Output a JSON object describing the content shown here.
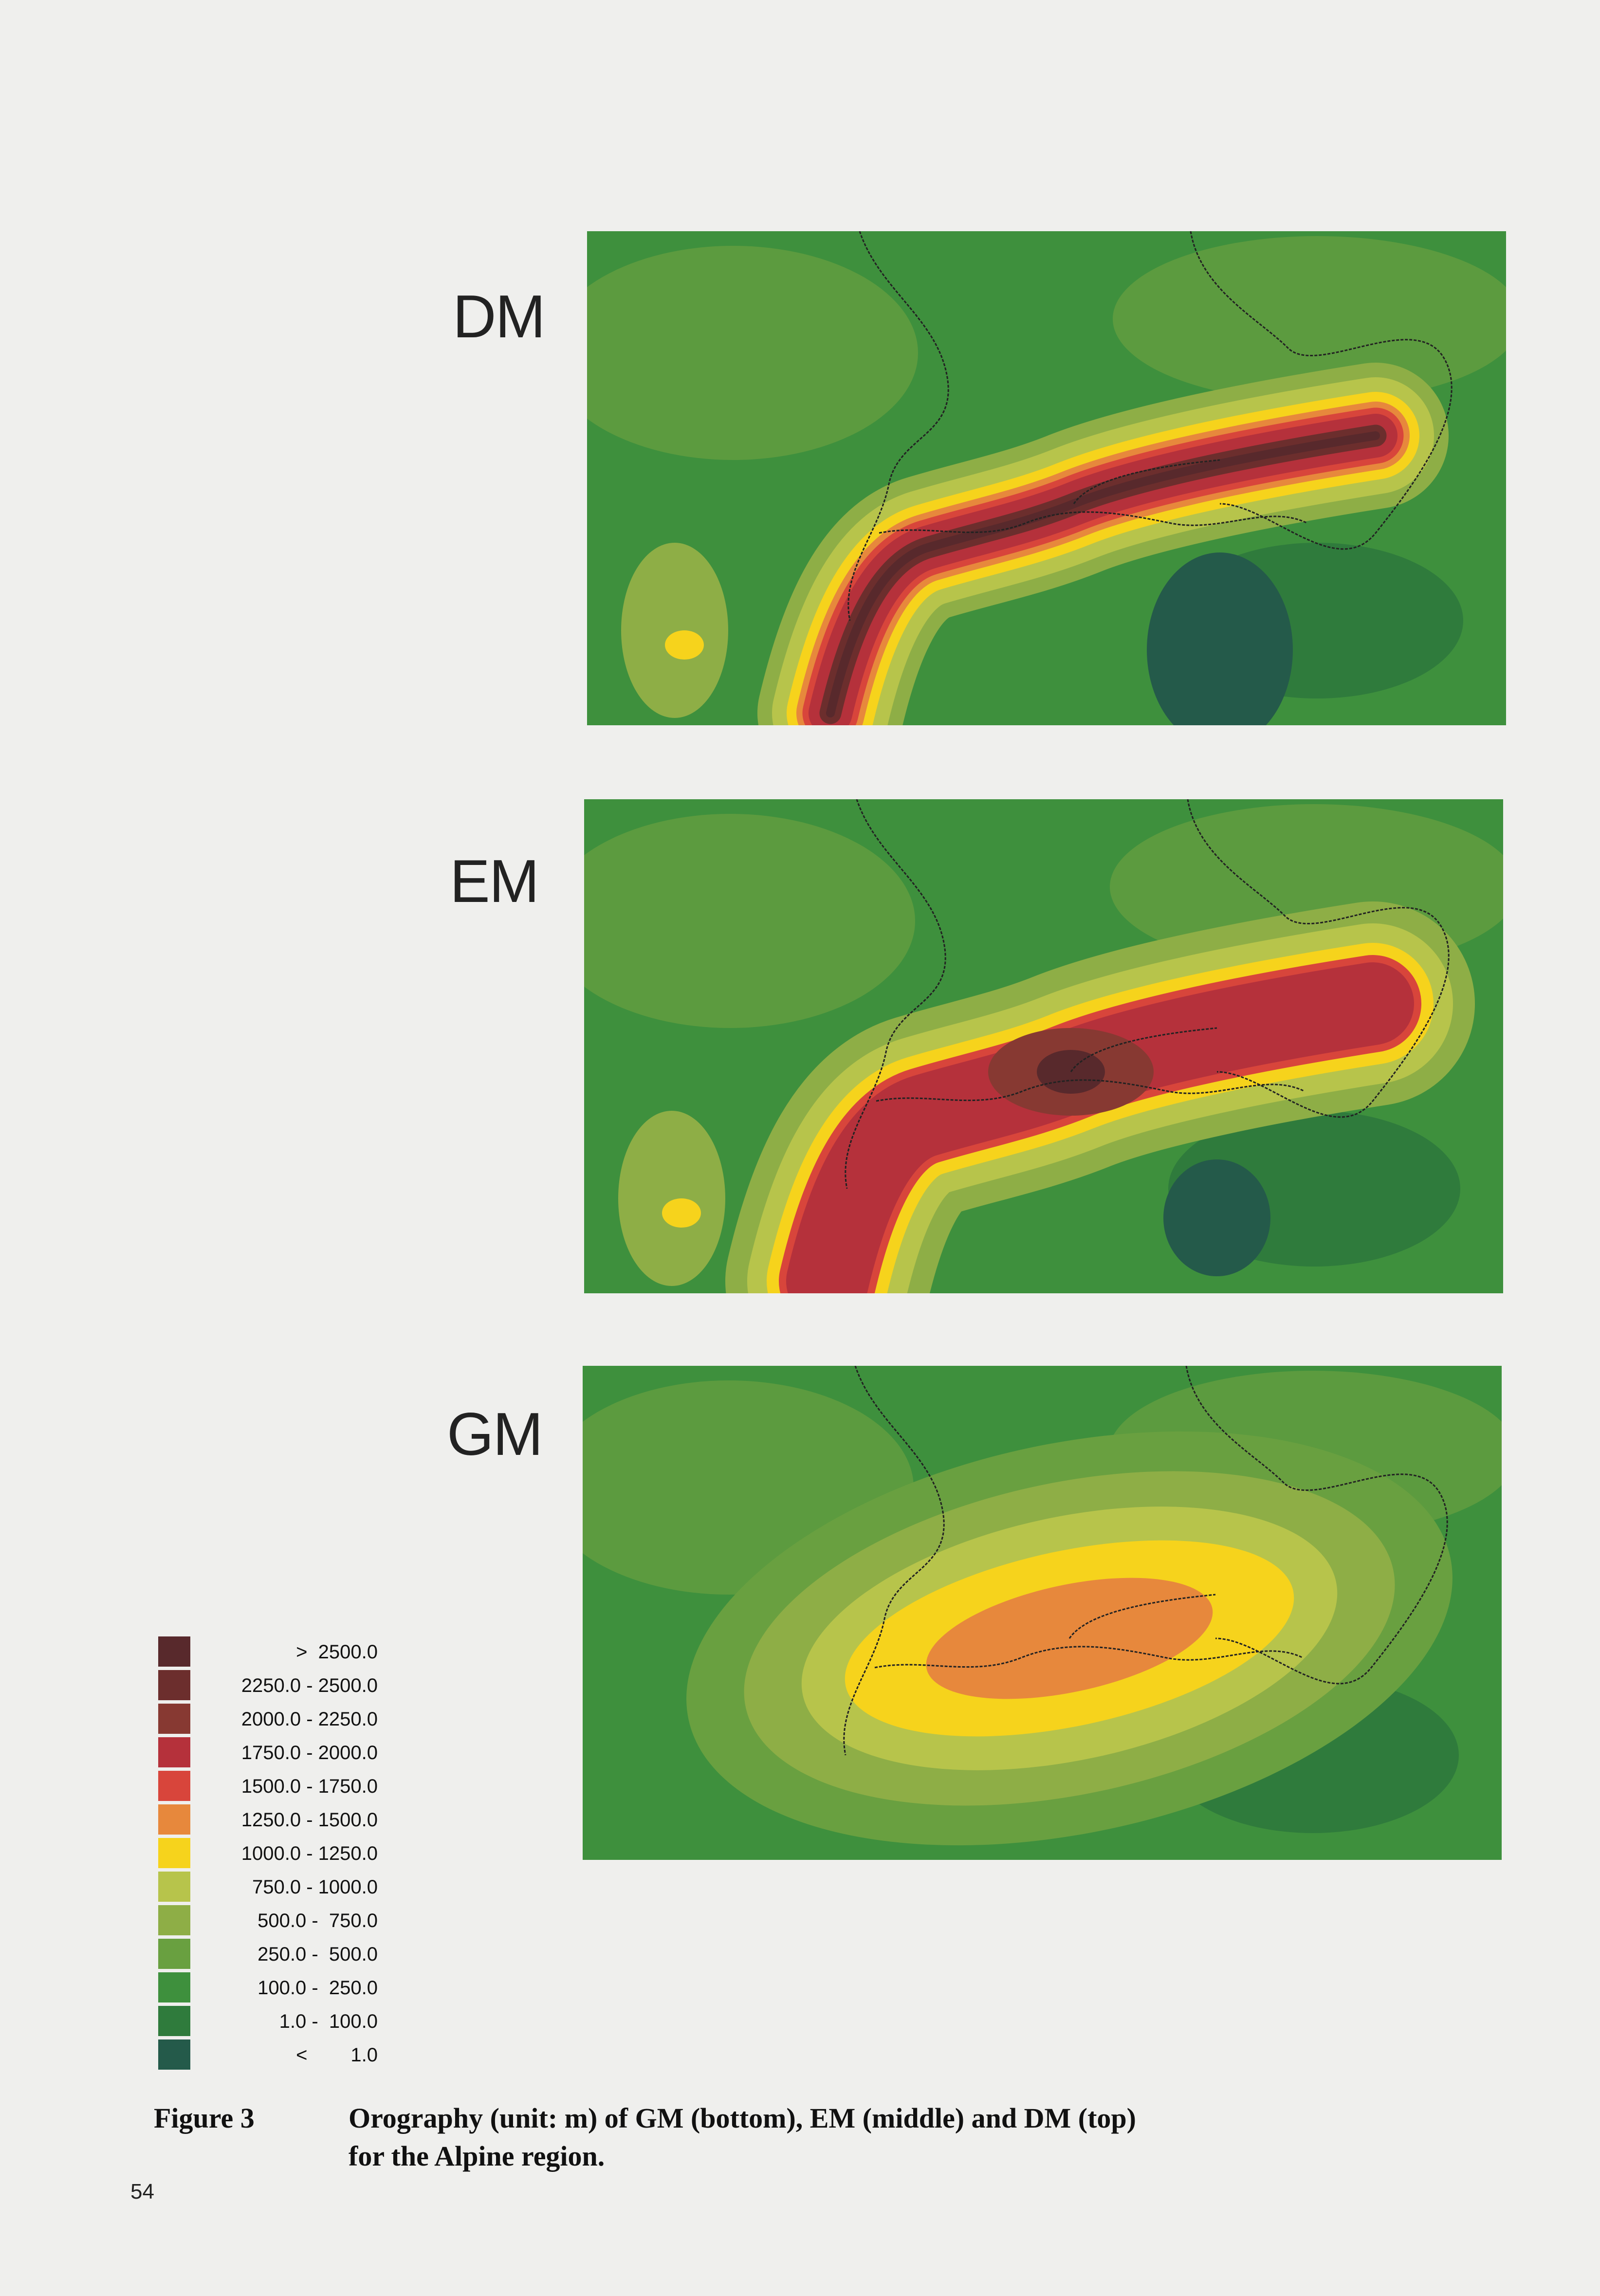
{
  "maps": [
    {
      "label": "DM"
    },
    {
      "label": "EM"
    },
    {
      "label": "GM"
    }
  ],
  "legend": {
    "items": [
      {
        "label": ">  2500.0",
        "color": "#58292c"
      },
      {
        "label": "2250.0 - 2500.0",
        "color": "#6c2e2d"
      },
      {
        "label": "2000.0 - 2250.0",
        "color": "#873932"
      },
      {
        "label": "1750.0 - 2000.0",
        "color": "#b5313b"
      },
      {
        "label": "1500.0 - 1750.0",
        "color": "#d8453b"
      },
      {
        "label": "1250.0 - 1500.0",
        "color": "#e7883c"
      },
      {
        "label": "1000.0 - 1250.0",
        "color": "#f6d31c"
      },
      {
        "label": "750.0 - 1000.0",
        "color": "#b7c44b"
      },
      {
        "label": "500.0 -  750.0",
        "color": "#8eae46"
      },
      {
        "label": "250.0 -  500.0",
        "color": "#69a040"
      },
      {
        "label": "100.0 -  250.0",
        "color": "#3e903d"
      },
      {
        "label": "1.0 -  100.0",
        "color": "#2f7b3c"
      },
      {
        "label": "<        1.0",
        "color": "#245a4a"
      }
    ]
  },
  "caption": {
    "figure": "Figure 3",
    "lines": [
      "Orography (unit: m) of GM (bottom), EM (middle) and DM (top)",
      "for the Alpine region."
    ]
  },
  "page_number": "54"
}
